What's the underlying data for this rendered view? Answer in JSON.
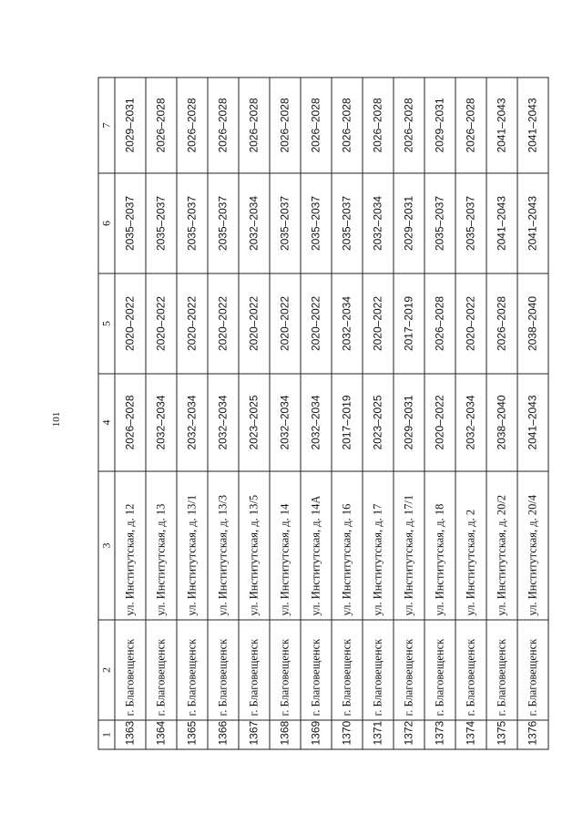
{
  "page_number": "101",
  "table": {
    "headers": [
      "1",
      "2",
      "3",
      "4",
      "5",
      "6",
      "7"
    ],
    "rows": [
      {
        "no": "1363",
        "city": "г. Благовещенск",
        "address": "ул. Институтская, д. 12",
        "c4": "2026–2028",
        "c5": "2020–2022",
        "c6": "2035–2037",
        "c7": "2029–2031"
      },
      {
        "no": "1364",
        "city": "г. Благовещенск",
        "address": "ул. Институтская, д. 13",
        "c4": "2032–2034",
        "c5": "2020–2022",
        "c6": "2035–2037",
        "c7": "2026–2028"
      },
      {
        "no": "1365",
        "city": "г. Благовещенск",
        "address": "ул. Институтская, д. 13/1",
        "c4": "2032–2034",
        "c5": "2020–2022",
        "c6": "2035–2037",
        "c7": "2026–2028"
      },
      {
        "no": "1366",
        "city": "г. Благовещенск",
        "address": "ул. Институтская, д. 13/3",
        "c4": "2032–2034",
        "c5": "2020–2022",
        "c6": "2035–2037",
        "c7": "2026–2028"
      },
      {
        "no": "1367",
        "city": "г. Благовещенск",
        "address": "ул. Институтская, д. 13/5",
        "c4": "2023–2025",
        "c5": "2020–2022",
        "c6": "2032–2034",
        "c7": "2026–2028"
      },
      {
        "no": "1368",
        "city": "г. Благовещенск",
        "address": "ул. Институтская, д. 14",
        "c4": "2032–2034",
        "c5": "2020–2022",
        "c6": "2035–2037",
        "c7": "2026–2028"
      },
      {
        "no": "1369",
        "city": "г. Благовещенск",
        "address": "ул. Институтская, д. 14А",
        "c4": "2032–2034",
        "c5": "2020–2022",
        "c6": "2035–2037",
        "c7": "2026–2028"
      },
      {
        "no": "1370",
        "city": "г. Благовещенск",
        "address": "ул. Институтская, д. 16",
        "c4": "2017–2019",
        "c5": "2032–2034",
        "c6": "2035–2037",
        "c7": "2026–2028"
      },
      {
        "no": "1371",
        "city": "г. Благовещенск",
        "address": "ул. Институтская, д. 17",
        "c4": "2023–2025",
        "c5": "2020–2022",
        "c6": "2032–2034",
        "c7": "2026–2028"
      },
      {
        "no": "1372",
        "city": "г. Благовещенск",
        "address": "ул. Институтская, д. 17/1",
        "c4": "2029–2031",
        "c5": "2017–2019",
        "c6": "2029–2031",
        "c7": "2026–2028"
      },
      {
        "no": "1373",
        "city": "г. Благовещенск",
        "address": "ул. Институтская, д. 18",
        "c4": "2020–2022",
        "c5": "2026–2028",
        "c6": "2035–2037",
        "c7": "2029–2031"
      },
      {
        "no": "1374",
        "city": "г. Благовещенск",
        "address": "ул. Институтская, д. 2",
        "c4": "2032–2034",
        "c5": "2020–2022",
        "c6": "2035–2037",
        "c7": "2026–2028"
      },
      {
        "no": "1375",
        "city": "г. Благовещенск",
        "address": "ул. Институтская, д. 20/2",
        "c4": "2038–2040",
        "c5": "2026–2028",
        "c6": "2041–2043",
        "c7": "2041–2043"
      },
      {
        "no": "1376",
        "city": "г. Благовещенск",
        "address": "ул. Институтская, д. 20/4",
        "c4": "2041–2043",
        "c5": "2038–2040",
        "c6": "2041–2043",
        "c7": "2041–2043"
      }
    ]
  }
}
